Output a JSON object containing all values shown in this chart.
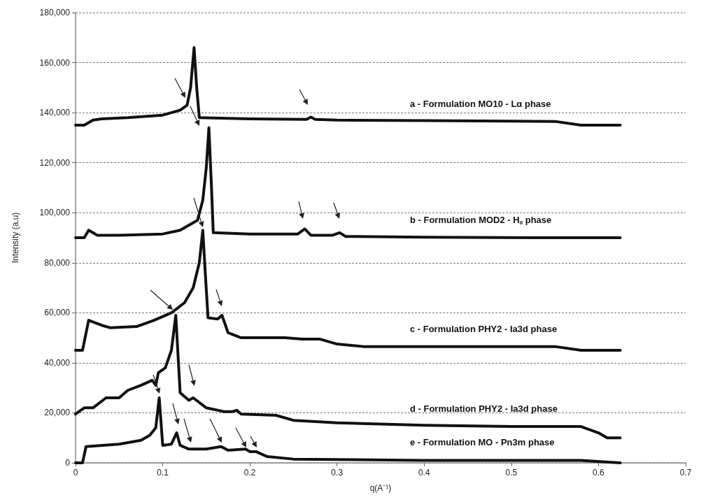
{
  "chart_data": {
    "type": "line",
    "xlabel": "q(A⁻¹)",
    "ylabel": "Intensity (a.u)",
    "xlim": [
      0,
      0.7
    ],
    "xticks": [
      0,
      0.1,
      0.2,
      0.3,
      0.4,
      0.5,
      0.6,
      0.7
    ],
    "ylim": [
      0,
      180000
    ],
    "yticks": [
      0,
      {
        "value": 20000,
        "label": "20,000"
      },
      {
        "value": 40000,
        "label": "40,000"
      },
      {
        "value": 60000,
        "label": "60,000"
      },
      {
        "value": 80000,
        "label": "80,000"
      },
      {
        "value": 100000,
        "label": "100,000"
      },
      {
        "value": 120000,
        "label": "120,000"
      },
      {
        "value": 140000,
        "label": "140,000"
      },
      {
        "value": 160000,
        "label": "160,000"
      },
      {
        "value": 180000,
        "label": "180,000"
      }
    ],
    "grid": "y",
    "legend": false,
    "marker": "none",
    "line_style": "solid",
    "series": [
      {
        "name": "a - Formulation MO10 - Lα phase",
        "color": "#111111",
        "x": [
          0,
          0.01,
          0.02,
          0.03,
          0.06,
          0.1,
          0.12,
          0.128,
          0.132,
          0.136,
          0.139,
          0.142,
          0.2,
          0.265,
          0.27,
          0.275,
          0.3,
          0.4,
          0.55,
          0.58,
          0.625
        ],
        "values": [
          135000,
          135000,
          137000,
          137500,
          138000,
          139000,
          141000,
          143000,
          150000,
          166000,
          150000,
          138000,
          137500,
          137300,
          138200,
          137300,
          137000,
          136800,
          136500,
          135000,
          135000
        ]
      },
      {
        "name": "b - Formulation MOD2 - H$_{II}$ phase",
        "color": "#111111",
        "x": [
          0,
          0.01,
          0.015,
          0.025,
          0.05,
          0.1,
          0.12,
          0.14,
          0.146,
          0.15,
          0.153,
          0.156,
          0.158,
          0.2,
          0.255,
          0.263,
          0.27,
          0.295,
          0.303,
          0.31,
          0.4,
          0.55,
          0.625
        ],
        "values": [
          90000,
          90000,
          93000,
          91000,
          91000,
          91500,
          93000,
          97000,
          105000,
          118000,
          134000,
          110000,
          92000,
          91500,
          91500,
          93500,
          91000,
          91000,
          92000,
          90500,
          90200,
          90000,
          90000
        ]
      },
      {
        "name": "c - Formulation PHY2 - Ia3d phase",
        "color": "#111111",
        "x": [
          0,
          0.008,
          0.015,
          0.03,
          0.04,
          0.07,
          0.09,
          0.11,
          0.125,
          0.135,
          0.142,
          0.146,
          0.149,
          0.152,
          0.163,
          0.168,
          0.175,
          0.19,
          0.24,
          0.26,
          0.28,
          0.3,
          0.33,
          0.55,
          0.58,
          0.625
        ],
        "values": [
          45000,
          45000,
          57000,
          55000,
          54000,
          54500,
          57000,
          60000,
          64000,
          70000,
          80000,
          93000,
          75000,
          58000,
          57500,
          59000,
          52000,
          50000,
          50000,
          49500,
          49500,
          47500,
          46500,
          46500,
          45000,
          45000
        ]
      },
      {
        "name": "d - Formulation PHY2 - Ia3d phase",
        "color": "#111111",
        "x": [
          0,
          0.01,
          0.02,
          0.035,
          0.05,
          0.06,
          0.075,
          0.088,
          0.092,
          0.095,
          0.103,
          0.11,
          0.115,
          0.12,
          0.13,
          0.135,
          0.15,
          0.17,
          0.18,
          0.185,
          0.19,
          0.23,
          0.25,
          0.3,
          0.4,
          0.5,
          0.58,
          0.6,
          0.61,
          0.625
        ],
        "values": [
          19500,
          22000,
          22000,
          26000,
          26000,
          29000,
          31000,
          33000,
          31000,
          36000,
          38000,
          45000,
          59000,
          28000,
          25000,
          26000,
          22000,
          20500,
          20500,
          21000,
          19500,
          19000,
          17000,
          16000,
          15000,
          14500,
          14500,
          12000,
          10000,
          10000
        ]
      },
      {
        "name": "e - Formulation MO - Pn3m phase",
        "color": "#111111",
        "x": [
          0,
          0.008,
          0.012,
          0.05,
          0.075,
          0.085,
          0.092,
          0.096,
          0.1,
          0.11,
          0.116,
          0.12,
          0.13,
          0.15,
          0.167,
          0.175,
          0.195,
          0.2,
          0.207,
          0.22,
          0.25,
          0.4,
          0.58,
          0.625
        ],
        "values": [
          0,
          0,
          6500,
          7500,
          9000,
          11000,
          14000,
          26000,
          7000,
          7500,
          12000,
          7000,
          5500,
          5500,
          6500,
          5000,
          5500,
          4500,
          4500,
          2500,
          1500,
          1000,
          1000,
          0
        ]
      }
    ]
  }
}
